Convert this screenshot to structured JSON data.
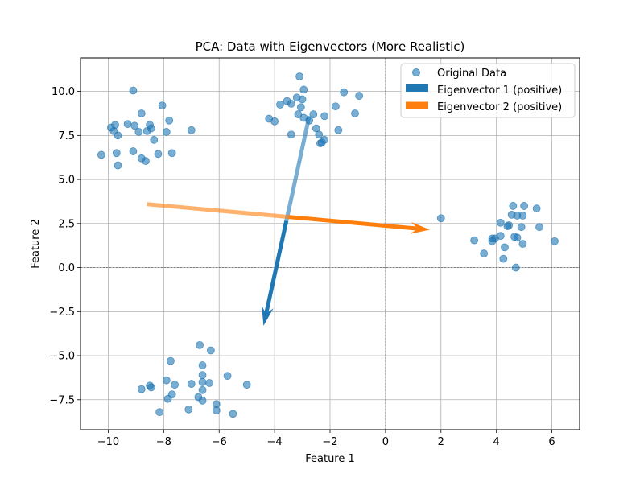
{
  "chart_data": {
    "type": "scatter",
    "title": "PCA: Data with Eigenvectors (More Realistic)",
    "xlabel": "Feature 1",
    "ylabel": "Feature 2",
    "xlim": [
      -11.0,
      7.0
    ],
    "ylim": [
      -9.2,
      11.9
    ],
    "x_ticks": [
      -10,
      -8,
      -6,
      -4,
      -2,
      0,
      2,
      4,
      6
    ],
    "x_tick_labels": [
      "−10",
      "−8",
      "−6",
      "−4",
      "−2",
      "0",
      "2",
      "4",
      "6"
    ],
    "y_ticks": [
      -7.5,
      -5.0,
      -2.5,
      0.0,
      2.5,
      5.0,
      7.5,
      10.0
    ],
    "y_tick_labels": [
      "−7.5",
      "−5.0",
      "−2.5",
      "0.0",
      "2.5",
      "5.0",
      "7.5",
      "10.0"
    ],
    "grid": true,
    "legend_position": "top-right",
    "legend": [
      "Original Data",
      "Eigenvector 1 (positive)",
      "Eigenvector 2 (positive)"
    ],
    "colors": {
      "scatter": "#1f77b4",
      "eigenvector_1": "#1f77b4",
      "eigenvector_2": "#ff7f0e"
    },
    "series": [
      {
        "name": "Original Data",
        "points": [
          [
            -9.1,
            10.05
          ],
          [
            -9.9,
            7.95
          ],
          [
            -9.8,
            7.75
          ],
          [
            -9.75,
            8.1
          ],
          [
            -9.65,
            7.5
          ],
          [
            -9.3,
            8.15
          ],
          [
            -9.05,
            8.05
          ],
          [
            -8.9,
            7.7
          ],
          [
            -8.8,
            8.75
          ],
          [
            -8.6,
            7.75
          ],
          [
            -8.5,
            8.1
          ],
          [
            -8.45,
            7.9
          ],
          [
            -8.35,
            7.25
          ],
          [
            -8.05,
            9.2
          ],
          [
            -7.8,
            8.35
          ],
          [
            -7.9,
            7.7
          ],
          [
            -7.0,
            7.8
          ],
          [
            -10.25,
            6.4
          ],
          [
            -9.7,
            6.5
          ],
          [
            -9.65,
            5.8
          ],
          [
            -9.1,
            6.6
          ],
          [
            -8.8,
            6.2
          ],
          [
            -8.65,
            6.05
          ],
          [
            -8.2,
            6.45
          ],
          [
            -7.7,
            6.5
          ],
          [
            -3.1,
            10.85
          ],
          [
            -2.95,
            10.1
          ],
          [
            -3.2,
            9.65
          ],
          [
            -3.0,
            9.55
          ],
          [
            -3.8,
            9.25
          ],
          [
            -3.55,
            9.45
          ],
          [
            -3.4,
            9.3
          ],
          [
            -3.05,
            9.1
          ],
          [
            -3.15,
            8.7
          ],
          [
            -2.95,
            8.5
          ],
          [
            -2.75,
            8.35
          ],
          [
            -2.6,
            8.7
          ],
          [
            -2.2,
            8.6
          ],
          [
            -1.8,
            9.15
          ],
          [
            -1.5,
            9.95
          ],
          [
            -1.1,
            8.75
          ],
          [
            -0.95,
            9.75
          ],
          [
            -4.2,
            8.45
          ],
          [
            -4.0,
            8.3
          ],
          [
            -2.5,
            7.9
          ],
          [
            -1.7,
            7.8
          ],
          [
            -3.4,
            7.55
          ],
          [
            -2.4,
            7.55
          ],
          [
            -2.2,
            7.25
          ],
          [
            -2.35,
            7.05
          ],
          [
            -2.3,
            7.1
          ],
          [
            2.0,
            2.8
          ],
          [
            4.15,
            2.55
          ],
          [
            4.6,
            3.5
          ],
          [
            5.0,
            3.5
          ],
          [
            5.45,
            3.35
          ],
          [
            4.55,
            3.0
          ],
          [
            4.75,
            2.95
          ],
          [
            4.95,
            2.95
          ],
          [
            4.4,
            2.35
          ],
          [
            4.45,
            2.4
          ],
          [
            4.9,
            2.3
          ],
          [
            5.55,
            2.3
          ],
          [
            3.2,
            1.55
          ],
          [
            3.85,
            1.65
          ],
          [
            3.85,
            1.5
          ],
          [
            3.95,
            1.65
          ],
          [
            4.15,
            1.8
          ],
          [
            4.65,
            1.75
          ],
          [
            4.75,
            1.7
          ],
          [
            4.95,
            1.35
          ],
          [
            6.1,
            1.5
          ],
          [
            4.3,
            1.15
          ],
          [
            3.55,
            0.8
          ],
          [
            4.25,
            0.5
          ],
          [
            4.7,
            0.0
          ],
          [
            -6.7,
            -4.4
          ],
          [
            -6.3,
            -4.7
          ],
          [
            -7.75,
            -5.3
          ],
          [
            -6.6,
            -5.55
          ],
          [
            -6.6,
            -6.1
          ],
          [
            -5.7,
            -6.15
          ],
          [
            -7.9,
            -6.4
          ],
          [
            -7.6,
            -6.65
          ],
          [
            -7.0,
            -6.6
          ],
          [
            -6.6,
            -6.5
          ],
          [
            -6.35,
            -6.55
          ],
          [
            -8.5,
            -6.7
          ],
          [
            -8.45,
            -6.8
          ],
          [
            -8.8,
            -6.9
          ],
          [
            -6.6,
            -6.95
          ],
          [
            -5.0,
            -6.65
          ],
          [
            -7.7,
            -7.2
          ],
          [
            -7.85,
            -7.45
          ],
          [
            -6.75,
            -7.35
          ],
          [
            -6.6,
            -7.55
          ],
          [
            -6.1,
            -7.75
          ],
          [
            -7.1,
            -8.05
          ],
          [
            -8.15,
            -8.2
          ],
          [
            -6.1,
            -8.1
          ],
          [
            -5.5,
            -8.3
          ]
        ]
      }
    ],
    "vectors": [
      {
        "name": "Eigenvector 1 (positive)",
        "from": [
          -2.75,
          8.6
        ],
        "to": [
          -4.4,
          -3.3
        ]
      },
      {
        "name": "Eigenvector 2 (positive)",
        "from": [
          -8.6,
          3.6
        ],
        "to": [
          1.6,
          2.15
        ]
      }
    ]
  }
}
